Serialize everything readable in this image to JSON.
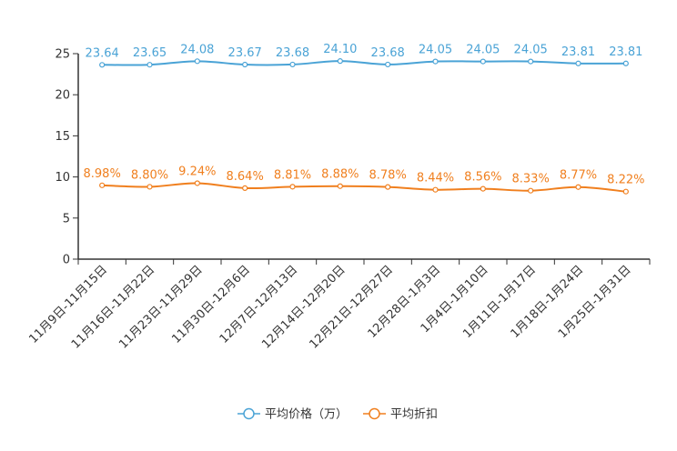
{
  "chart_data": {
    "type": "line",
    "title": "",
    "xlabel": "",
    "ylabel": "",
    "ylim": [
      0,
      25
    ],
    "yticks": [
      0,
      5,
      10,
      15,
      20,
      25
    ],
    "grid": false,
    "legend_position": "bottom-center",
    "categories": [
      "11月9日-11月15日",
      "11月16日-11月22日",
      "11月23日-11月29日",
      "11月30日-12月6日",
      "12月7日-12月13日",
      "12月14日-12月20日",
      "12月21日-12月27日",
      "12月28日-1月3日",
      "1月4日-1月10日",
      "1月11日-1月17日",
      "1月18日-1月24日",
      "1月25日-1月31日"
    ],
    "series": [
      {
        "name": "平均价格（万）",
        "color": "#4aa3d6",
        "values": [
          23.64,
          23.65,
          24.08,
          23.67,
          23.68,
          24.1,
          23.68,
          24.05,
          24.05,
          24.05,
          23.81,
          23.81
        ],
        "labels": [
          "23.64",
          "23.65",
          "24.08",
          "23.67",
          "23.68",
          "24.10",
          "23.68",
          "24.05",
          "24.05",
          "24.05",
          "23.81",
          "23.81"
        ]
      },
      {
        "name": "平均折扣",
        "color": "#f07f1e",
        "values": [
          8.98,
          8.8,
          9.24,
          8.64,
          8.81,
          8.88,
          8.78,
          8.44,
          8.56,
          8.33,
          8.77,
          8.22
        ],
        "labels": [
          "8.98%",
          "8.80%",
          "9.24%",
          "8.64%",
          "8.81%",
          "8.88%",
          "8.78%",
          "8.44%",
          "8.56%",
          "8.33%",
          "8.77%",
          "8.22%"
        ]
      }
    ]
  }
}
